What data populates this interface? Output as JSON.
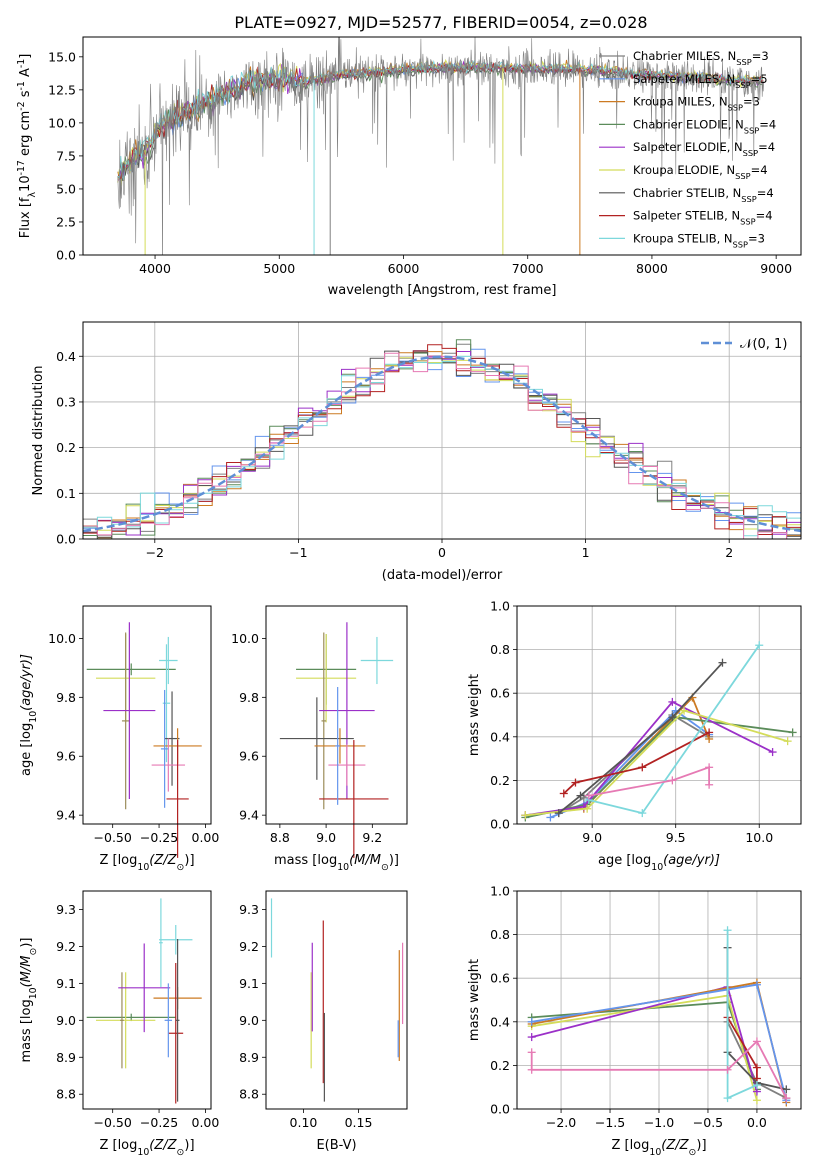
{
  "figure_title": "PLATE=0927, MJD=52577, FIBERID=0054, z=0.028",
  "colors": {
    "chabrier_miles": "#808080",
    "salpeter_miles": "#6495ed",
    "kroupa_miles": "#cc7a22",
    "chabrier_elodie": "#5b8c5a",
    "salpeter_elodie": "#9b30c8",
    "kroupa_elodie": "#d4dc5a",
    "chabrier_stelib": "#555555",
    "salpeter_stelib": "#b22222",
    "kroupa_stelib": "#7dd8dc",
    "pink": "#e67ab4",
    "gauss": "#5f8fd6"
  },
  "chart_data": [
    {
      "id": "spectrum",
      "type": "line",
      "title": "PLATE=0927, MJD=52577, FIBERID=0054, z=0.028",
      "xlabel": "wavelength [Angstrom, rest frame]",
      "ylabel": "Flux [f",
      "ylabel_parts": [
        "Flux [f",
        "λ",
        "10",
        "-17",
        " erg cm",
        "-2",
        " s",
        "-1",
        " A",
        "-1",
        "]"
      ],
      "xlim": [
        3420,
        9200
      ],
      "ylim": [
        0,
        16.5
      ],
      "xticks": [
        4000,
        5000,
        6000,
        7000,
        8000,
        9000
      ],
      "yticks": [
        "0.0",
        "2.5",
        "5.0",
        "7.5",
        "10.0",
        "12.5",
        "15.0"
      ],
      "legend": [
        {
          "name": "Chabrier MILES, N",
          "sub": "SSP",
          "suffix": "=3",
          "color": "#808080"
        },
        {
          "name": "Salpeter MILES, N",
          "sub": "SSP",
          "suffix": "=5",
          "color": "#6495ed"
        },
        {
          "name": "Kroupa MILES, N",
          "sub": "SSP",
          "suffix": "=3",
          "color": "#cc7a22"
        },
        {
          "name": "Chabrier ELODIE, N",
          "sub": "SSP",
          "suffix": "=4",
          "color": "#5b8c5a"
        },
        {
          "name": "Salpeter ELODIE, N",
          "sub": "SSP",
          "suffix": "=4",
          "color": "#9b30c8"
        },
        {
          "name": "Kroupa ELODIE, N",
          "sub": "SSP",
          "suffix": "=4",
          "color": "#d4dc5a"
        },
        {
          "name": "Chabrier STELIB, N",
          "sub": "SSP",
          "suffix": "=4",
          "color": "#555555"
        },
        {
          "name": "Salpeter STELIB, N",
          "sub": "SSP",
          "suffix": "=4",
          "color": "#b22222"
        },
        {
          "name": "Kroupa STELIB, N",
          "sub": "SSP",
          "suffix": "=3",
          "color": "#7dd8dc"
        }
      ],
      "continuum_anchors": [
        [
          3700,
          5.8
        ],
        [
          3800,
          7.0
        ],
        [
          3950,
          8.2
        ],
        [
          4050,
          9.8
        ],
        [
          4200,
          10.5
        ],
        [
          4400,
          11.5
        ],
        [
          4600,
          12.4
        ],
        [
          4800,
          13.2
        ],
        [
          5000,
          13.4
        ],
        [
          5200,
          13.1
        ],
        [
          5500,
          13.6
        ],
        [
          6000,
          14.0
        ],
        [
          6500,
          14.2
        ],
        [
          7000,
          14.1
        ],
        [
          7500,
          14.0
        ],
        [
          8000,
          13.6
        ],
        [
          8500,
          13.3
        ],
        [
          8900,
          13.1
        ]
      ]
    },
    {
      "id": "residuals",
      "type": "line",
      "xlabel": "(data-model)/error",
      "ylabel": "Normed distribution",
      "xlim": [
        -2.5,
        2.5
      ],
      "ylim": [
        0,
        0.475
      ],
      "xticks": [
        -2,
        -1,
        0,
        1,
        2
      ],
      "xticklabels": [
        "−2",
        "−1",
        "0",
        "1",
        "2"
      ],
      "yticks": [
        "0.0",
        "0.1",
        "0.2",
        "0.3",
        "0.4"
      ],
      "legend": [
        {
          "name": "𝒩(0, 1)",
          "color": "#5f8fd6"
        }
      ],
      "bin_width": 0.1,
      "bin_start": -2.5,
      "gauss_mu": 0,
      "gauss_sigma": 1
    },
    {
      "id": "age_vs_Z",
      "type": "scatter",
      "xlabel": "Z [log",
      "xlabel_parts": [
        "Z [log",
        "10",
        "(Z/Z",
        "⊙",
        ")]"
      ],
      "ylabel_parts": [
        "age  [log",
        "10",
        "(age/yr)]"
      ],
      "xlim": [
        -0.66,
        0.03
      ],
      "ylim": [
        9.37,
        10.11
      ],
      "xticks": [
        -0.5,
        -0.25,
        0.0
      ],
      "xticklabels": [
        "−0.50",
        "−0.25",
        "0.00"
      ],
      "yticks": [
        9.4,
        9.6,
        9.8,
        10.0
      ],
      "yticklabels": [
        "9.4",
        "9.6",
        "9.8",
        "10.0"
      ],
      "points": [
        {
          "x": -0.4,
          "y": 9.895,
          "xerr": 0.24,
          "yerr": 0.02,
          "color": "#5b8c5a"
        },
        {
          "x": -0.43,
          "y": 9.865,
          "xerr": 0.16,
          "yerr": 0.15,
          "color": "#d4dc5a"
        },
        {
          "x": -0.43,
          "y": 9.72,
          "xerr": 0.02,
          "yerr": 0.3,
          "color": "#9b8c5a"
        },
        {
          "x": -0.41,
          "y": 9.755,
          "xerr": 0.14,
          "yerr": 0.3,
          "color": "#9b30c8"
        },
        {
          "x": -0.2,
          "y": 9.925,
          "xerr": 0.05,
          "yerr": 0.08,
          "color": "#7dd8dc"
        },
        {
          "x": -0.21,
          "y": 9.78,
          "xerr": 0.02,
          "yerr": 0.2,
          "color": "#7dd8dc"
        },
        {
          "x": -0.18,
          "y": 9.66,
          "xerr": 0.04,
          "yerr": 0.16,
          "color": "#555555"
        },
        {
          "x": -0.15,
          "y": 9.635,
          "xerr": 0.13,
          "yerr": 0.06,
          "color": "#cc7a22"
        },
        {
          "x": -0.2,
          "y": 9.57,
          "xerr": 0.09,
          "yerr": 0.09,
          "color": "#e67ab4"
        },
        {
          "x": -0.15,
          "y": 9.455,
          "xerr": 0.06,
          "yerr": 0.2,
          "color": "#b22222"
        },
        {
          "x": -0.22,
          "y": 9.625,
          "xerr": 0.02,
          "yerr": 0.2,
          "color": "#6495ed"
        }
      ]
    },
    {
      "id": "age_vs_mass",
      "type": "scatter",
      "xlabel_parts": [
        "mass [log",
        "10",
        "(M/M",
        "⊙",
        ")]"
      ],
      "xlim": [
        8.74,
        9.35
      ],
      "ylim": [
        9.37,
        10.11
      ],
      "xticks": [
        8.8,
        9.0,
        9.2
      ],
      "xticklabels": [
        "8.8",
        "9.0",
        "9.2"
      ],
      "yticks": [
        9.4,
        9.6,
        9.8,
        10.0
      ],
      "yticklabels": [
        "9.4",
        "9.6",
        "9.8",
        "10.0"
      ],
      "points": [
        {
          "x": 9.0,
          "y": 9.895,
          "xerr": 0.13,
          "yerr": 0.12,
          "color": "#5b8c5a"
        },
        {
          "x": 9.0,
          "y": 9.865,
          "xerr": 0.13,
          "yerr": 0.15,
          "color": "#d4dc5a"
        },
        {
          "x": 8.99,
          "y": 9.72,
          "xerr": 0.01,
          "yerr": 0.3,
          "color": "#9b8c5a"
        },
        {
          "x": 9.09,
          "y": 9.755,
          "xerr": 0.12,
          "yerr": 0.3,
          "color": "#9b30c8"
        },
        {
          "x": 9.22,
          "y": 9.925,
          "xerr": 0.07,
          "yerr": 0.08,
          "color": "#7dd8dc"
        },
        {
          "x": 8.96,
          "y": 9.66,
          "xerr": 0.16,
          "yerr": 0.14,
          "color": "#555555"
        },
        {
          "x": 9.06,
          "y": 9.635,
          "xerr": 0.11,
          "yerr": 0.06,
          "color": "#cc7a22"
        },
        {
          "x": 9.09,
          "y": 9.57,
          "xerr": 0.08,
          "yerr": 0.07,
          "color": "#e67ab4"
        },
        {
          "x": 9.12,
          "y": 9.455,
          "xerr": 0.15,
          "yerr": 0.2,
          "color": "#b22222"
        },
        {
          "x": 9.05,
          "y": 9.635,
          "xerr": 0.01,
          "yerr": 0.2,
          "color": "#6495ed"
        }
      ]
    },
    {
      "id": "mass_weight_vs_age",
      "type": "line",
      "xlabel_parts": [
        "age  [log",
        "10",
        "(age/yr)]"
      ],
      "ylabel": "mass weight",
      "xlim": [
        8.55,
        10.25
      ],
      "ylim": [
        0,
        1.0
      ],
      "xticks": [
        9.0,
        9.5,
        10.0
      ],
      "xticklabels": [
        "9.0",
        "9.5",
        "10.0"
      ],
      "yticks": [
        0.0,
        0.2,
        0.4,
        0.6,
        0.8,
        1.0
      ],
      "yticklabels": [
        "0.0",
        "0.2",
        "0.4",
        "0.6",
        "0.8",
        "1.0"
      ],
      "series": [
        {
          "color": "#808080",
          "x": [
            8.8,
            8.95,
            9.48,
            9.7
          ],
          "y": [
            0.05,
            0.12,
            0.5,
            0.4
          ]
        },
        {
          "color": "#6495ed",
          "x": [
            8.75,
            8.97,
            9.5,
            9.7
          ],
          "y": [
            0.03,
            0.1,
            0.52,
            0.41
          ]
        },
        {
          "color": "#cc7a22",
          "x": [
            8.6,
            8.95,
            9.6,
            9.7
          ],
          "y": [
            0.04,
            0.07,
            0.58,
            0.39
          ]
        },
        {
          "color": "#5b8c5a",
          "x": [
            8.6,
            8.97,
            9.5,
            10.2
          ],
          "y": [
            0.03,
            0.09,
            0.49,
            0.42
          ]
        },
        {
          "color": "#9b30c8",
          "x": [
            8.6,
            8.95,
            9.48,
            10.08
          ],
          "y": [
            0.04,
            0.08,
            0.56,
            0.33
          ]
        },
        {
          "color": "#d4dc5a",
          "x": [
            8.6,
            8.97,
            9.55,
            10.17
          ],
          "y": [
            0.04,
            0.07,
            0.52,
            0.38
          ]
        },
        {
          "color": "#555555",
          "x": [
            8.8,
            8.93,
            9.48,
            9.78
          ],
          "y": [
            0.05,
            0.13,
            0.49,
            0.74
          ]
        },
        {
          "color": "#b22222",
          "x": [
            8.83,
            8.9,
            9.3,
            9.7
          ],
          "y": [
            0.14,
            0.19,
            0.26,
            0.42
          ]
        },
        {
          "color": "#7dd8dc",
          "x": [
            8.98,
            9.3,
            10.0
          ],
          "y": [
            0.11,
            0.05,
            0.82
          ]
        },
        {
          "color": "#e67ab4",
          "x": [
            8.98,
            9.48,
            9.7,
            9.7
          ],
          "y": [
            0.13,
            0.2,
            0.26,
            0.18
          ]
        }
      ]
    },
    {
      "id": "mass_vs_Z",
      "type": "scatter",
      "xlabel_parts": [
        "Z [log",
        "10",
        "(Z/Z",
        "⊙",
        ")]"
      ],
      "ylabel_parts": [
        "mass [log",
        "10",
        "(M/M",
        "⊙",
        ")]"
      ],
      "xlim": [
        -0.66,
        0.03
      ],
      "ylim": [
        8.76,
        9.35
      ],
      "xticks": [
        -0.5,
        -0.25,
        0.0
      ],
      "xticklabels": [
        "−0.50",
        "−0.25",
        "0.00"
      ],
      "yticks": [
        8.8,
        8.9,
        9.0,
        9.1,
        9.2,
        9.3
      ],
      "yticklabels": [
        "8.8",
        "8.9",
        "9.0",
        "9.1",
        "9.2",
        "9.3"
      ],
      "points": [
        {
          "x": -0.4,
          "y": 9.008,
          "xerr": 0.24,
          "yerr": 0.01,
          "color": "#5b8c5a"
        },
        {
          "x": -0.43,
          "y": 9.0,
          "xerr": 0.16,
          "yerr": 0.13,
          "color": "#d4dc5a"
        },
        {
          "x": -0.45,
          "y": 9.0,
          "xerr": 0.01,
          "yerr": 0.13,
          "color": "#9b8c5a"
        },
        {
          "x": -0.33,
          "y": 9.088,
          "xerr": 0.14,
          "yerr": 0.12,
          "color": "#9b30c8"
        },
        {
          "x": -0.16,
          "y": 9.218,
          "xerr": 0.09,
          "yerr": 0.04,
          "color": "#7dd8dc"
        },
        {
          "x": -0.24,
          "y": 9.21,
          "xerr": 0.01,
          "yerr": 0.12,
          "color": "#7dd8dc"
        },
        {
          "x": -0.15,
          "y": 9.06,
          "xerr": 0.13,
          "yerr": 0.03,
          "color": "#cc7a22"
        },
        {
          "x": -0.16,
          "y": 8.965,
          "xerr": 0.04,
          "yerr": 0.19,
          "color": "#b22222"
        },
        {
          "x": -0.15,
          "y": 9.0,
          "xerr": 0.01,
          "yerr": 0.22,
          "color": "#555555"
        },
        {
          "x": -0.2,
          "y": 9.0,
          "xerr": 0.02,
          "yerr": 0.1,
          "color": "#6495ed"
        }
      ]
    },
    {
      "id": "mass_vs_EBV",
      "type": "scatter",
      "xlabel": "E(B-V)",
      "xlim": [
        0.066,
        0.194
      ],
      "ylim": [
        8.76,
        9.35
      ],
      "xticks": [
        0.1,
        0.15
      ],
      "xticklabels": [
        "0.10",
        "0.15"
      ],
      "yticks": [
        8.8,
        8.9,
        9.0,
        9.1,
        9.2,
        9.3
      ],
      "yticklabels": [
        "8.8",
        "8.9",
        "9.0",
        "9.1",
        "9.2",
        "9.3"
      ],
      "points": [
        {
          "x": 0.071,
          "y": 9.25,
          "xerr": 0,
          "yerr": 0.08,
          "color": "#7dd8dc"
        },
        {
          "x": 0.107,
          "y": 9.0,
          "xerr": 0,
          "yerr": 0.13,
          "color": "#d4dc5a"
        },
        {
          "x": 0.108,
          "y": 9.09,
          "xerr": 0,
          "yerr": 0.12,
          "color": "#9b30c8"
        },
        {
          "x": 0.118,
          "y": 9.05,
          "xerr": 0,
          "yerr": 0.22,
          "color": "#b22222"
        },
        {
          "x": 0.119,
          "y": 8.9,
          "xerr": 0,
          "yerr": 0.12,
          "color": "#555555"
        },
        {
          "x": 0.187,
          "y": 9.04,
          "xerr": 0,
          "yerr": 0.15,
          "color": "#cc7a22"
        },
        {
          "x": 0.19,
          "y": 9.1,
          "xerr": 0,
          "yerr": 0.11,
          "color": "#e67ab4"
        },
        {
          "x": 0.186,
          "y": 8.95,
          "xerr": 0,
          "yerr": 0.05,
          "color": "#6495ed"
        }
      ]
    },
    {
      "id": "mass_weight_vs_Z",
      "type": "line",
      "xlabel_parts": [
        "Z [log",
        "10",
        "(Z/Z",
        "⊙",
        ")]"
      ],
      "ylabel": "mass weight",
      "xlim": [
        -2.45,
        0.45
      ],
      "ylim": [
        0,
        1.0
      ],
      "xticks": [
        -2.0,
        -1.5,
        -1.0,
        -0.5,
        0.0
      ],
      "xticklabels": [
        "−2.0",
        "−1.5",
        "−1.0",
        "−0.5",
        "0.0"
      ],
      "yticks": [
        0.0,
        0.2,
        0.4,
        0.6,
        0.8,
        1.0
      ],
      "yticklabels": [
        "0.0",
        "0.2",
        "0.4",
        "0.6",
        "0.8",
        "1.0"
      ],
      "series": [
        {
          "color": "#808080",
          "x": [
            -0.3,
            0.0,
            0.3
          ],
          "y": [
            0.4,
            0.12,
            0.05
          ]
        },
        {
          "color": "#5b8c5a",
          "x": [
            -2.3,
            -0.3,
            0.0
          ],
          "y": [
            0.42,
            0.49,
            0.09
          ]
        },
        {
          "color": "#d4dc5a",
          "x": [
            -2.3,
            -0.3,
            0.0
          ],
          "y": [
            0.38,
            0.52,
            0.04
          ]
        },
        {
          "color": "#9b30c8",
          "x": [
            -2.3,
            -0.3,
            0.0
          ],
          "y": [
            0.33,
            0.56,
            0.08
          ]
        },
        {
          "color": "#cc7a22",
          "x": [
            -2.3,
            0.0,
            0.3
          ],
          "y": [
            0.39,
            0.58,
            0.03
          ]
        },
        {
          "color": "#6495ed",
          "x": [
            -2.3,
            0.0,
            0.3
          ],
          "y": [
            0.4,
            0.57,
            0.04
          ]
        },
        {
          "color": "#555555",
          "x": [
            -0.3,
            -0.3,
            0.0,
            0.3
          ],
          "y": [
            0.74,
            0.26,
            0.12,
            0.09
          ]
        },
        {
          "color": "#b22222",
          "x": [
            -0.3,
            0.0,
            0.0
          ],
          "y": [
            0.42,
            0.19,
            0.14
          ]
        },
        {
          "color": "#7dd8dc",
          "x": [
            -0.3,
            -0.3,
            0.0
          ],
          "y": [
            0.82,
            0.05,
            0.11
          ]
        },
        {
          "color": "#e67ab4",
          "x": [
            -2.3,
            -2.3,
            -0.3,
            0.0,
            0.3
          ],
          "y": [
            0.26,
            0.18,
            0.18,
            0.31,
            0.05
          ]
        }
      ]
    }
  ]
}
